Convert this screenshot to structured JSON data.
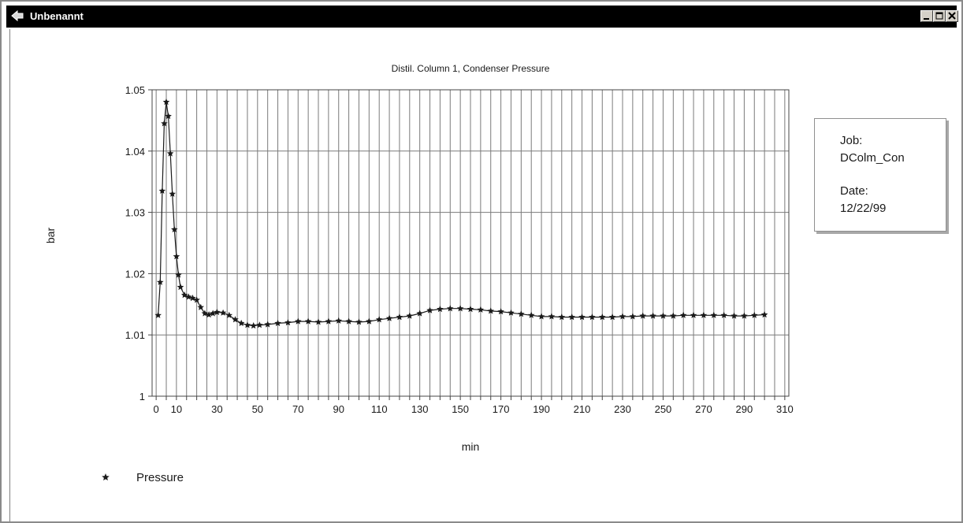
{
  "window": {
    "title": "Unbenannt",
    "icon": "app-arrow-icon",
    "buttons": [
      "minimize-icon",
      "maximize-icon",
      "close-icon"
    ]
  },
  "info_panel": {
    "job_label": "Job:",
    "job_value": "DColm_Con",
    "date_label": "Date:",
    "date_value": "12/22/99"
  },
  "chart_data": {
    "type": "scatter",
    "title": "Distil. Column 1, Condenser Pressure",
    "xlabel": "min",
    "ylabel": "bar",
    "xlim": [
      -2,
      312
    ],
    "ylim": [
      1,
      1.05
    ],
    "x_ticks": [
      0,
      10,
      30,
      50,
      70,
      90,
      110,
      130,
      150,
      170,
      190,
      210,
      230,
      250,
      270,
      290,
      310
    ],
    "y_ticks": [
      1,
      1.01,
      1.02,
      1.03,
      1.04,
      1.05
    ],
    "y_tick_labels": [
      "1",
      "1.01",
      "1.02",
      "1.03",
      "1.04",
      "1.05"
    ],
    "grid": true,
    "legend_position": "bottom-left",
    "marker": "star",
    "series": [
      {
        "name": "Pressure",
        "color": "#1a1a1a",
        "points": [
          [
            1,
            1.0132
          ],
          [
            2,
            1.0186
          ],
          [
            3,
            1.0335
          ],
          [
            4,
            1.0445
          ],
          [
            5,
            1.048
          ],
          [
            6,
            1.0457
          ],
          [
            7,
            1.0396
          ],
          [
            8,
            1.033
          ],
          [
            9,
            1.0272
          ],
          [
            10,
            1.0228
          ],
          [
            11,
            1.0198
          ],
          [
            12,
            1.0178
          ],
          [
            14,
            1.0165
          ],
          [
            16,
            1.0162
          ],
          [
            18,
            1.016
          ],
          [
            20,
            1.0157
          ],
          [
            22,
            1.0145
          ],
          [
            24,
            1.0135
          ],
          [
            26,
            1.0133
          ],
          [
            28,
            1.0135
          ],
          [
            30,
            1.0137
          ],
          [
            33,
            1.0136
          ],
          [
            36,
            1.0132
          ],
          [
            39,
            1.0125
          ],
          [
            42,
            1.0119
          ],
          [
            45,
            1.0116
          ],
          [
            48,
            1.0115
          ],
          [
            51,
            1.0116
          ],
          [
            55,
            1.0117
          ],
          [
            60,
            1.0119
          ],
          [
            65,
            1.012
          ],
          [
            70,
            1.0122
          ],
          [
            75,
            1.0122
          ],
          [
            80,
            1.0121
          ],
          [
            85,
            1.0122
          ],
          [
            90,
            1.0123
          ],
          [
            95,
            1.0122
          ],
          [
            100,
            1.0121
          ],
          [
            105,
            1.0122
          ],
          [
            110,
            1.0125
          ],
          [
            115,
            1.0127
          ],
          [
            120,
            1.0129
          ],
          [
            125,
            1.0131
          ],
          [
            130,
            1.0135
          ],
          [
            135,
            1.014
          ],
          [
            140,
            1.0142
          ],
          [
            145,
            1.0143
          ],
          [
            150,
            1.0143
          ],
          [
            155,
            1.0142
          ],
          [
            160,
            1.0141
          ],
          [
            165,
            1.0139
          ],
          [
            170,
            1.0138
          ],
          [
            175,
            1.0136
          ],
          [
            180,
            1.0134
          ],
          [
            185,
            1.0132
          ],
          [
            190,
            1.013
          ],
          [
            195,
            1.013
          ],
          [
            200,
            1.0129
          ],
          [
            205,
            1.0129
          ],
          [
            210,
            1.0129
          ],
          [
            215,
            1.0129
          ],
          [
            220,
            1.0129
          ],
          [
            225,
            1.0129
          ],
          [
            230,
            1.013
          ],
          [
            235,
            1.013
          ],
          [
            240,
            1.0131
          ],
          [
            245,
            1.0131
          ],
          [
            250,
            1.0131
          ],
          [
            255,
            1.0131
          ],
          [
            260,
            1.0132
          ],
          [
            265,
            1.0132
          ],
          [
            270,
            1.0132
          ],
          [
            275,
            1.0132
          ],
          [
            280,
            1.0132
          ],
          [
            285,
            1.0131
          ],
          [
            290,
            1.0131
          ],
          [
            295,
            1.0132
          ],
          [
            300,
            1.0133
          ]
        ]
      }
    ]
  }
}
